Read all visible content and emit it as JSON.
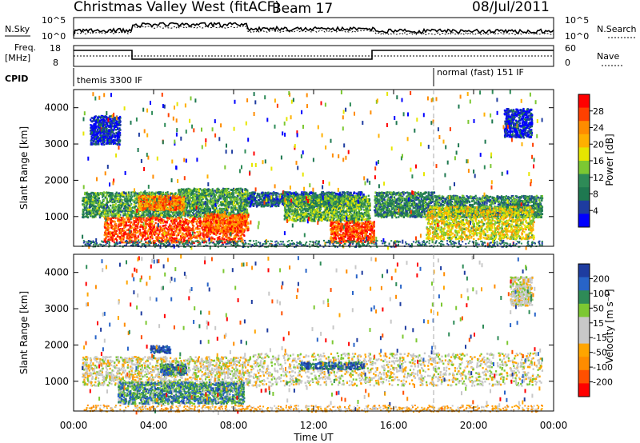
{
  "header": {
    "radar": "Christmas Valley West (fitACF)",
    "beam": "Beam 17",
    "date": "08/Jul/2011"
  },
  "noise_panel": {
    "left_label": "N.Sky",
    "left_ticks": [
      "10^5",
      "10^0"
    ],
    "right_ticks": [
      "10^5",
      "10^0"
    ],
    "right_label": "N.Search"
  },
  "freq_panel": {
    "label_line1": "Freq.",
    "label_line2": "[MHz]",
    "left_ticks": [
      "18",
      "8"
    ],
    "right_ticks": [
      "60",
      "0"
    ],
    "right_label": "Nave"
  },
  "cpid": {
    "label": "CPID",
    "segments": [
      "themis 3300 IF",
      "normal (fast) 151 IF"
    ]
  },
  "chart_data": [
    {
      "type": "heatmap",
      "name": "power",
      "ylabel": "Slant Range [km]",
      "yticks": [
        "4000",
        "3000",
        "2000",
        "1000"
      ],
      "xticks": [
        "00:00",
        "04:00",
        "08:00",
        "12:00",
        "16:00",
        "20:00",
        "00:00"
      ],
      "xlabel": "Time UT",
      "colorbar_title": "Power [dB]",
      "colorbar_ticks": [
        "28",
        "24",
        "20",
        "16",
        "12",
        "8",
        "4"
      ],
      "colorbar_colors": [
        "#ff0000",
        "#ff4000",
        "#ff8c00",
        "#ffb000",
        "#e6e600",
        "#7cc832",
        "#2e8b57",
        "#1e7850",
        "#1e3ca0",
        "#0000ff"
      ],
      "regions": [
        {
          "t": [
            0.4,
            5.2
          ],
          "r": [
            1000,
            1700
          ],
          "level": 0.35
        },
        {
          "t": [
            5.2,
            8.7
          ],
          "r": [
            1000,
            1800
          ],
          "level": 0.35
        },
        {
          "t": [
            1.5,
            8.5
          ],
          "r": [
            300,
            1000
          ],
          "level": 0.85
        },
        {
          "t": [
            3.2,
            5.5
          ],
          "r": [
            1200,
            1600
          ],
          "level": 0.75
        },
        {
          "t": [
            6.5,
            8.7
          ],
          "r": [
            600,
            1100
          ],
          "level": 0.8
        },
        {
          "t": [
            8.7,
            14.5
          ],
          "r": [
            1300,
            1700
          ],
          "level": 0.2
        },
        {
          "t": [
            10.5,
            14.8
          ],
          "r": [
            900,
            1600
          ],
          "level": 0.4
        },
        {
          "t": [
            12.8,
            15.0
          ],
          "r": [
            300,
            900
          ],
          "level": 0.85
        },
        {
          "t": [
            15.0,
            18.0
          ],
          "r": [
            1000,
            1700
          ],
          "level": 0.3
        },
        {
          "t": [
            18.0,
            23.4
          ],
          "r": [
            1000,
            1600
          ],
          "level": 0.3
        },
        {
          "t": [
            17.6,
            23.0
          ],
          "r": [
            400,
            1300
          ],
          "level": 0.55
        },
        {
          "t": [
            0.8,
            2.3
          ],
          "r": [
            3000,
            3800
          ],
          "level": 0.1
        },
        {
          "t": [
            21.5,
            22.9
          ],
          "r": [
            3200,
            4000
          ],
          "level": 0.1
        }
      ]
    },
    {
      "type": "heatmap",
      "name": "velocity",
      "ylabel": "Slant Range [km]",
      "yticks": [
        "4000",
        "3000",
        "2000",
        "1000"
      ],
      "xticks": [
        "00:00",
        "04:00",
        "08:00",
        "12:00",
        "16:00",
        "20:00",
        "00:00"
      ],
      "xlabel": "Time UT",
      "colorbar_title": "Velocity [m s⁻¹]",
      "colorbar_ticks": [
        "200",
        "100",
        "50",
        "15",
        "-15",
        "-50",
        "-100",
        "-200"
      ],
      "colorbar_colors": [
        "#1e3ca0",
        "#2864c8",
        "#2e8b57",
        "#7cc832",
        "#c8c8c8",
        "#c8c8c8",
        "#ffa500",
        "#ff8c00",
        "#ff5000",
        "#ff0000"
      ],
      "regions": [
        {
          "t": [
            0.4,
            8.8
          ],
          "r": [
            900,
            1700
          ],
          "level": 0.5
        },
        {
          "t": [
            8.8,
            23.4
          ],
          "r": [
            900,
            1800
          ],
          "level": 0.5
        },
        {
          "t": [
            4.3,
            5.6
          ],
          "r": [
            1200,
            1500
          ],
          "level": 0.8
        },
        {
          "t": [
            2.2,
            8.5
          ],
          "r": [
            400,
            1000
          ],
          "level": 0.75
        },
        {
          "t": [
            11.3,
            14.5
          ],
          "r": [
            1350,
            1550
          ],
          "level": 0.85
        },
        {
          "t": [
            3.8,
            4.8
          ],
          "r": [
            1800,
            2000
          ],
          "level": 0.95
        },
        {
          "t": [
            21.8,
            22.9
          ],
          "r": [
            3100,
            3900
          ],
          "level": 0.5
        }
      ]
    }
  ]
}
